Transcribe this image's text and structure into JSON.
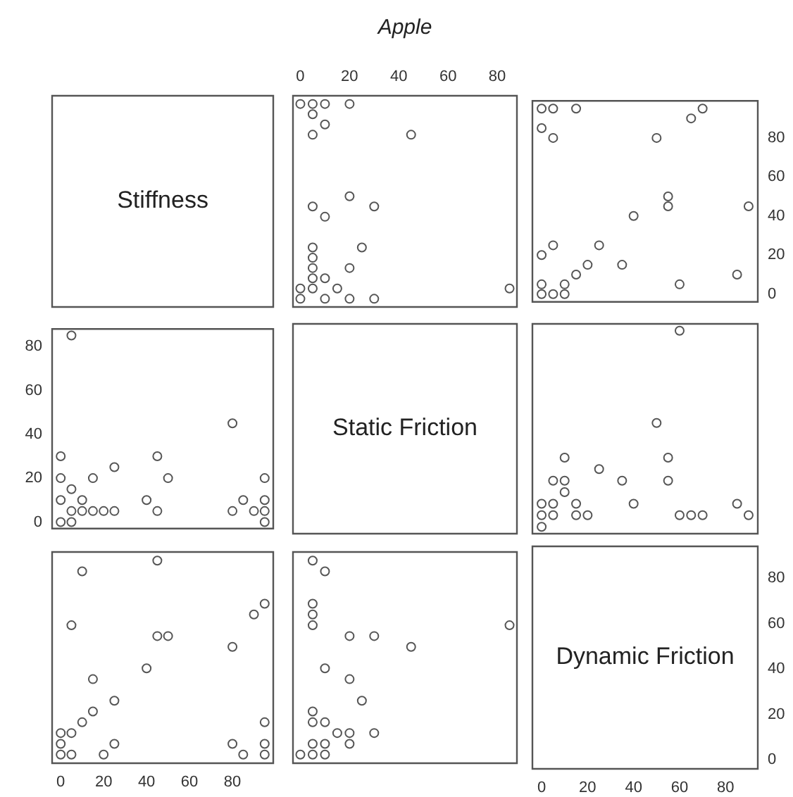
{
  "chart_data": [
    {
      "type": "other",
      "title": "Stiffness"
    },
    {
      "type": "scatter",
      "title": "Apple",
      "xlim": [
        -3,
        88
      ],
      "xticks": [
        0,
        20,
        40,
        60,
        80
      ],
      "ylim": [
        -4,
        99
      ],
      "tick_labels": "x",
      "marker": "circle",
      "grid": false,
      "series": [
        {
          "color": "#555555",
          "x": [
            85,
            30,
            20,
            15,
            10,
            10,
            20,
            25,
            5,
            5,
            5,
            5,
            5,
            0,
            0,
            10,
            30,
            5,
            20,
            45,
            5,
            10,
            5,
            20,
            10,
            5,
            0
          ],
          "values": [
            5,
            0,
            0,
            5,
            0,
            10,
            15,
            25,
            5,
            10,
            15,
            20,
            25,
            0,
            5,
            40,
            45,
            45,
            50,
            80,
            80,
            85,
            90,
            95,
            95,
            95,
            95
          ]
        }
      ]
    },
    {
      "type": "scatter",
      "xlim": [
        -4,
        94
      ],
      "ylim": [
        -4,
        99
      ],
      "yticks": [
        0,
        20,
        40,
        60,
        80
      ],
      "tick_labels": "y",
      "marker": "circle",
      "grid": false,
      "series": [
        {
          "color": "#555555",
          "x": [
            85,
            90,
            70,
            65,
            60,
            55,
            55,
            50,
            40,
            35,
            25,
            20,
            15,
            10,
            10,
            15,
            5,
            5,
            5,
            5,
            0,
            0,
            0,
            0,
            0
          ],
          "values": [
            10,
            45,
            95,
            90,
            5,
            45,
            50,
            80,
            40,
            15,
            25,
            15,
            10,
            0,
            5,
            95,
            0,
            25,
            80,
            95,
            0,
            5,
            20,
            85,
            95
          ]
        }
      ]
    },
    {
      "type": "scatter",
      "xlim": [
        -4,
        99
      ],
      "ylim": [
        -3,
        88
      ],
      "yticks": [
        0,
        20,
        40,
        60,
        80
      ],
      "tick_labels": "y",
      "marker": "circle",
      "grid": false,
      "series": [
        {
          "color": "#555555",
          "x": [
            5,
            0,
            0,
            5,
            0,
            10,
            15,
            25,
            5,
            10,
            15,
            20,
            25,
            0,
            5,
            40,
            45,
            45,
            50,
            80,
            80,
            85,
            90,
            95,
            95,
            95,
            95
          ],
          "values": [
            85,
            30,
            20,
            15,
            10,
            10,
            20,
            25,
            5,
            5,
            5,
            5,
            5,
            0,
            0,
            10,
            30,
            5,
            20,
            45,
            5,
            10,
            5,
            20,
            10,
            5,
            0
          ]
        }
      ]
    },
    {
      "type": "other",
      "title": "Static Friction"
    },
    {
      "type": "scatter",
      "xlim": [
        -4,
        94
      ],
      "ylim": [
        -3,
        88
      ],
      "tick_labels": false,
      "marker": "circle",
      "grid": false,
      "series": [
        {
          "color": "#555555",
          "x": [
            90,
            85,
            70,
            65,
            60,
            55,
            55,
            50,
            60,
            40,
            35,
            25,
            20,
            15,
            15,
            10,
            10,
            10,
            5,
            5,
            5,
            0,
            0,
            0
          ],
          "values": [
            5,
            10,
            5,
            5,
            5,
            20,
            30,
            45,
            85,
            10,
            20,
            25,
            5,
            5,
            10,
            15,
            20,
            30,
            5,
            10,
            20,
            0,
            5,
            10
          ]
        }
      ]
    },
    {
      "type": "scatter",
      "xlim": [
        -4,
        99
      ],
      "xticks": [
        0,
        20,
        40,
        60,
        80
      ],
      "ylim": [
        -4,
        94
      ],
      "tick_labels": "x",
      "marker": "circle",
      "grid": false,
      "series": [
        {
          "color": "#555555",
          "x": [
            10,
            45,
            95,
            90,
            5,
            45,
            50,
            80,
            40,
            15,
            25,
            15,
            10,
            0,
            5,
            95,
            0,
            25,
            80,
            95,
            0,
            5,
            20,
            85,
            95
          ],
          "values": [
            85,
            90,
            70,
            65,
            60,
            55,
            55,
            50,
            40,
            35,
            25,
            20,
            15,
            10,
            10,
            15,
            5,
            5,
            5,
            5,
            0,
            0,
            0,
            0,
            0
          ]
        }
      ]
    },
    {
      "type": "scatter",
      "xlim": [
        -3,
        88
      ],
      "ylim": [
        -4,
        94
      ],
      "tick_labels": false,
      "marker": "circle",
      "grid": false,
      "series": [
        {
          "color": "#555555",
          "x": [
            5,
            10,
            5,
            5,
            5,
            20,
            30,
            45,
            85,
            10,
            20,
            25,
            5,
            5,
            10,
            15,
            20,
            30,
            5,
            10,
            20,
            0,
            5,
            10
          ],
          "values": [
            90,
            85,
            70,
            65,
            60,
            55,
            55,
            50,
            60,
            40,
            35,
            25,
            20,
            15,
            15,
            10,
            10,
            10,
            5,
            5,
            5,
            0,
            0,
            0
          ]
        }
      ]
    },
    {
      "type": "scatter",
      "title": "Dynamic Friction",
      "xlim": [
        -4,
        94
      ],
      "xticks": [
        0,
        20,
        40,
        60,
        80
      ],
      "ylim": [
        -4,
        94
      ],
      "yticks": [
        0,
        20,
        40,
        60,
        80
      ],
      "grid": false
    }
  ]
}
